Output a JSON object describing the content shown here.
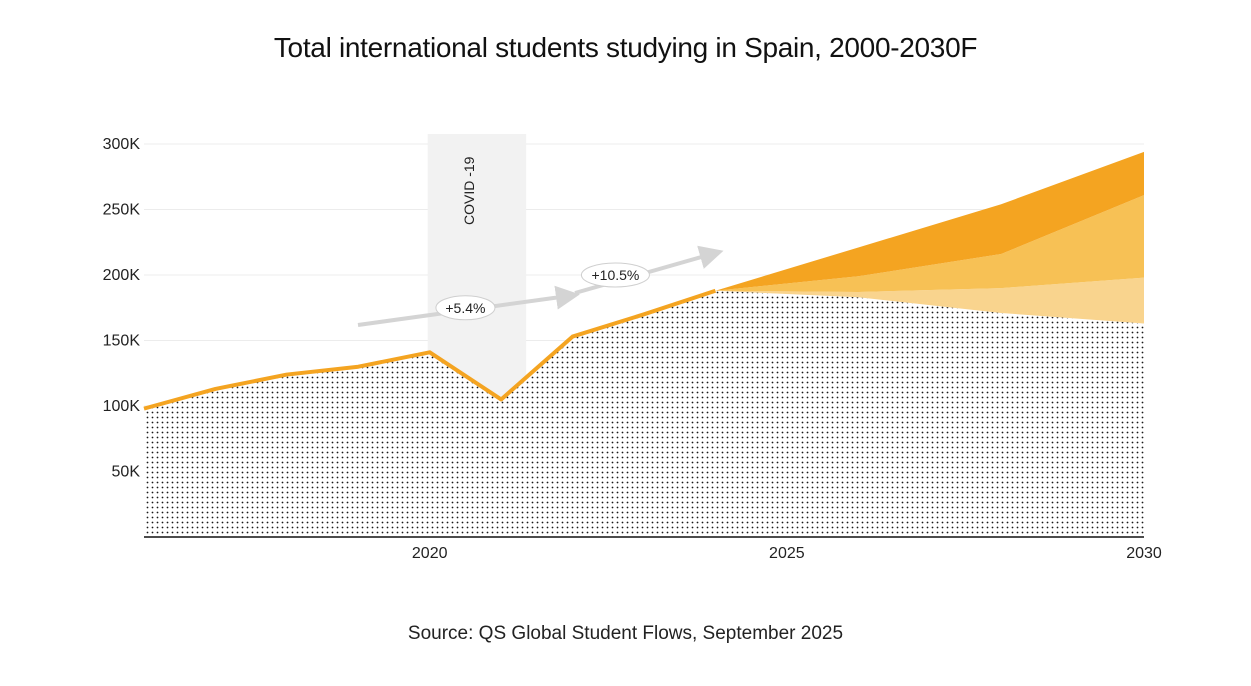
{
  "chart_data": {
    "type": "area",
    "title": "Total international students studying in Spain, 2000-2030F",
    "source": "Source: QS Global Student Flows, September 2025",
    "xlabel": "",
    "ylabel": "",
    "xlim": [
      2016,
      2030
    ],
    "ylim": [
      0,
      300000
    ],
    "x_ticks": [
      {
        "value": 2020,
        "label": "2020"
      },
      {
        "value": 2025,
        "label": "2025"
      },
      {
        "value": 2030,
        "label": "2030"
      }
    ],
    "y_ticks": [
      {
        "value": 50000,
        "label": "50K"
      },
      {
        "value": 100000,
        "label": "100K"
      },
      {
        "value": 150000,
        "label": "150K"
      },
      {
        "value": 200000,
        "label": "200K"
      },
      {
        "value": 250000,
        "label": "250K"
      },
      {
        "value": 300000,
        "label": "300K"
      }
    ],
    "grid": true,
    "actual": {
      "x": [
        2016,
        2017,
        2018,
        2019,
        2020,
        2021,
        2022,
        2023,
        2024
      ],
      "y": [
        98000,
        113000,
        124000,
        130000,
        141000,
        105000,
        153000,
        170000,
        188000
      ]
    },
    "forecast": {
      "x": [
        2024,
        2026,
        2028,
        2030
      ],
      "bands": [
        {
          "color": "#f9d48e",
          "low": [
            188000,
            183000,
            171000,
            163000
          ],
          "high": [
            188000,
            187000,
            190000,
            198000
          ]
        },
        {
          "color": "#f7c155",
          "low": [
            188000,
            187000,
            190000,
            198000
          ],
          "high": [
            188000,
            199000,
            216000,
            261000
          ]
        },
        {
          "color": "#f4a421",
          "low": [
            188000,
            199000,
            216000,
            261000
          ],
          "high": [
            188000,
            221000,
            254000,
            294000
          ]
        }
      ]
    },
    "covid_band": {
      "x_start": 2020,
      "x_end": 2021.35,
      "label": "COVID -19"
    },
    "annotations": [
      {
        "label": "+5.4%",
        "x": 2020.5,
        "y": 175000
      },
      {
        "label": "+10.5%",
        "x": 2022.6,
        "y": 200000
      }
    ],
    "colors": {
      "line": "#f4a421",
      "covid_band": "#f2f2f2",
      "arrow": "#d4d4d4",
      "grid": "#ececec"
    }
  }
}
